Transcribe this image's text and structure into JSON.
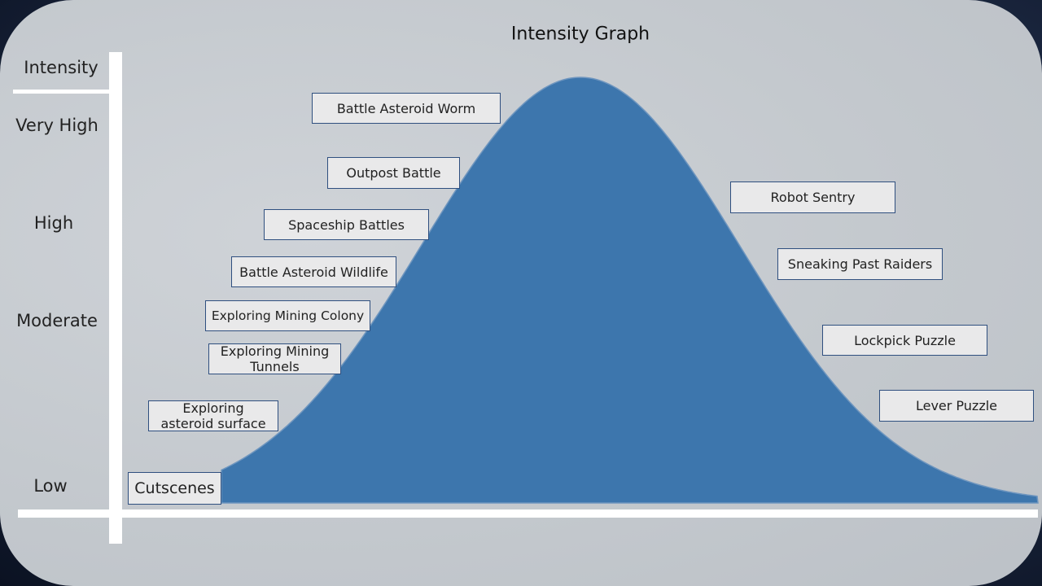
{
  "title": "Intensity Graph",
  "axis": {
    "title": "Intensity",
    "levels": [
      "Very High",
      "High",
      "Moderate",
      "Low"
    ]
  },
  "activities": [
    "Battle Asteroid Worm",
    "Outpost Battle",
    "Spaceship Battles",
    "Battle Asteroid Wildlife",
    "Exploring Mining Colony",
    "Exploring Mining Tunnels",
    "Exploring asteroid surface",
    "Cutscenes",
    "Robot Sentry",
    "Sneaking Past Raiders",
    "Lockpick Puzzle",
    "Lever Puzzle"
  ]
}
